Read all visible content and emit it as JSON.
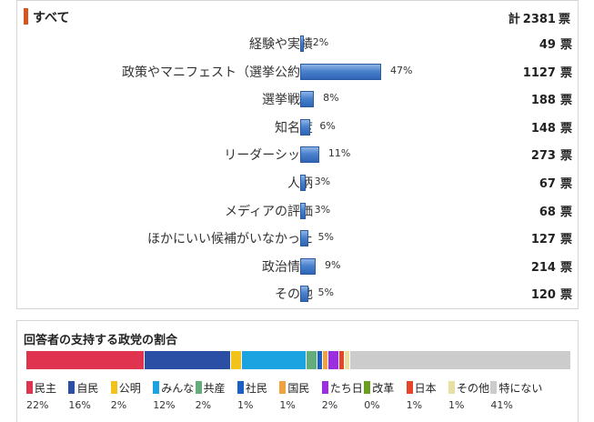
{
  "all": {
    "title": "すべて",
    "total_prefix": "計",
    "total": "2381",
    "unit": "票"
  },
  "chart_data": [
    {
      "type": "bar",
      "title": "すべて",
      "categories": [
        "経験や実績",
        "政策やマニフェスト（選挙公約）",
        "選挙戦略",
        "知名度",
        "リーダーシップ",
        "人柄",
        "メディアの評価",
        "ほかにいい候補がいなかった",
        "政治情勢",
        "その他"
      ],
      "values": [
        2,
        47,
        8,
        6,
        11,
        3,
        3,
        5,
        9,
        5
      ],
      "value_labels": [
        "2%",
        "47%",
        "8%",
        "6%",
        "11%",
        "3%",
        "3%",
        "5%",
        "9%",
        "5%"
      ],
      "votes": [
        "49",
        "1127",
        "188",
        "148",
        "273",
        "67",
        "68",
        "127",
        "214",
        "120"
      ],
      "orientation": "horizontal",
      "bar_color": "#4a82cc"
    },
    {
      "type": "bar",
      "stacked": true,
      "title": "回答者の支持する政党の割合",
      "categories": [
        "民主",
        "自民",
        "公明",
        "みんな",
        "共産",
        "社民",
        "国民",
        "たち日",
        "改革",
        "日本",
        "その他",
        "特にない"
      ],
      "values": [
        22,
        16,
        2,
        12,
        2,
        1,
        1,
        2,
        0,
        1,
        1,
        41
      ],
      "value_labels": [
        "22%",
        "16%",
        "2%",
        "12%",
        "2%",
        "1%",
        "1%",
        "2%",
        "0%",
        "1%",
        "1%",
        "41%"
      ],
      "colors": [
        "#e0334f",
        "#2c4fa6",
        "#f2c21b",
        "#1aa3e0",
        "#62ad7a",
        "#1a5fc4",
        "#f0a23e",
        "#9a2ee0",
        "#6b9e1f",
        "#e5452b",
        "#e8e0a0",
        "#cccccc"
      ]
    }
  ]
}
